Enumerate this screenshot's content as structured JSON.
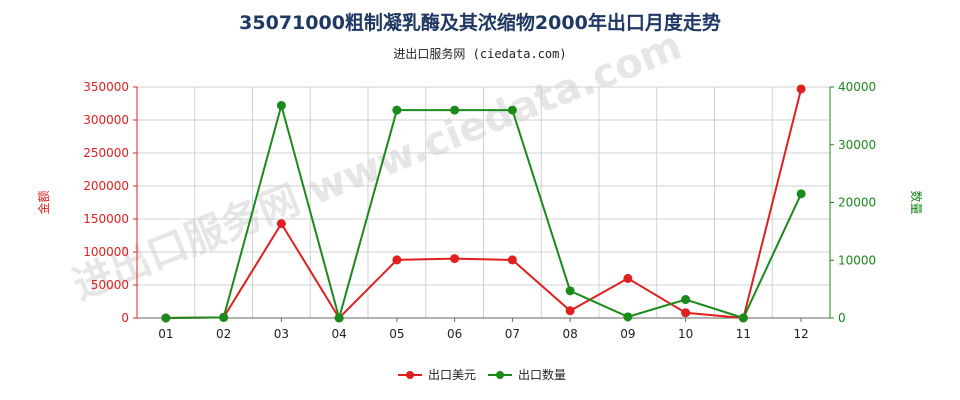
{
  "title": "35071000粗制凝乳酶及其浓缩物2000年出口月度走势",
  "subtitle": "进出口服务网 (ciedata.com)",
  "watermark": "进出口服务网 www.ciedata.com",
  "chart_data": {
    "type": "line",
    "categories": [
      "01",
      "02",
      "03",
      "04",
      "05",
      "06",
      "07",
      "08",
      "09",
      "10",
      "11",
      "12"
    ],
    "series": [
      {
        "name": "出口美元",
        "axis": "left",
        "color": "#e02020",
        "values": [
          0,
          1000,
          143000,
          0,
          88000,
          90000,
          88000,
          11000,
          60000,
          8000,
          0,
          347000
        ]
      },
      {
        "name": "出口数量",
        "axis": "right",
        "color": "#1a8a1a",
        "values": [
          0,
          100,
          36800,
          0,
          36000,
          36000,
          36000,
          4700,
          200,
          3200,
          0,
          21500
        ]
      }
    ],
    "ylabel_left": "金额",
    "ylabel_right": "数量",
    "ylim_left": [
      0,
      350000
    ],
    "yticks_left": [
      0,
      50000,
      100000,
      150000,
      200000,
      250000,
      300000,
      350000
    ],
    "ylim_right": [
      0,
      40000
    ],
    "yticks_right": [
      0,
      10000,
      20000,
      30000,
      40000
    ],
    "grid": true,
    "legend": "bottom-center"
  }
}
